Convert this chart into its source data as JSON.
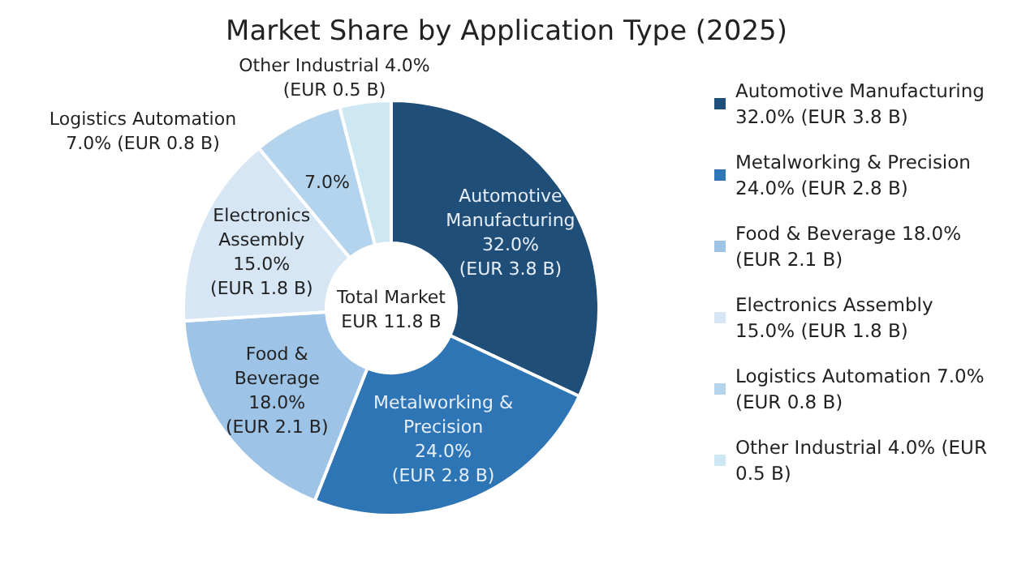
{
  "chart_data": {
    "type": "donut",
    "title": "Market Share by Application Type (2025)",
    "categories": [
      "Automotive Manufacturing 32.0% (EUR 3.8 B)",
      "Metalworking & Precision 24.0% (EUR 2.8 B)",
      "Food & Beverage 18.0% (EUR 2.1 B)",
      "Electronics Assembly 15.0% (EUR 1.8 B)",
      "Logistics Automation 7.0% (EUR 0.8 B)",
      "Other Industrial 4.0% (EUR 0.5 B)"
    ],
    "values": [
      32,
      24,
      18,
      15,
      7,
      4
    ],
    "colors": [
      "#1f4e79",
      "#2e75b6",
      "#9dc3e6",
      "#d6e6f5",
      "#b4d4ee",
      "#cde8f2"
    ],
    "value_labels": [
      "Automotive\nManufacturing\n32.0%\n(EUR 3.8 B)",
      "Metalworking &\nPrecision\n24.0%\n(EUR 2.8 B)",
      "Food &\nBeverage\n18.0%\n(EUR 2.1 B)",
      "Electronics\nAssembly\n15.0%\n(EUR 1.8 B)",
      "7.0%",
      null
    ],
    "annotations": [
      "Logistics Automation\n7.0% (EUR 0.8 B)",
      "Other Industrial 4.0%\n(EUR 0.5 B)",
      "Total Market\nEUR 11.8 B"
    ],
    "legend": "right"
  }
}
